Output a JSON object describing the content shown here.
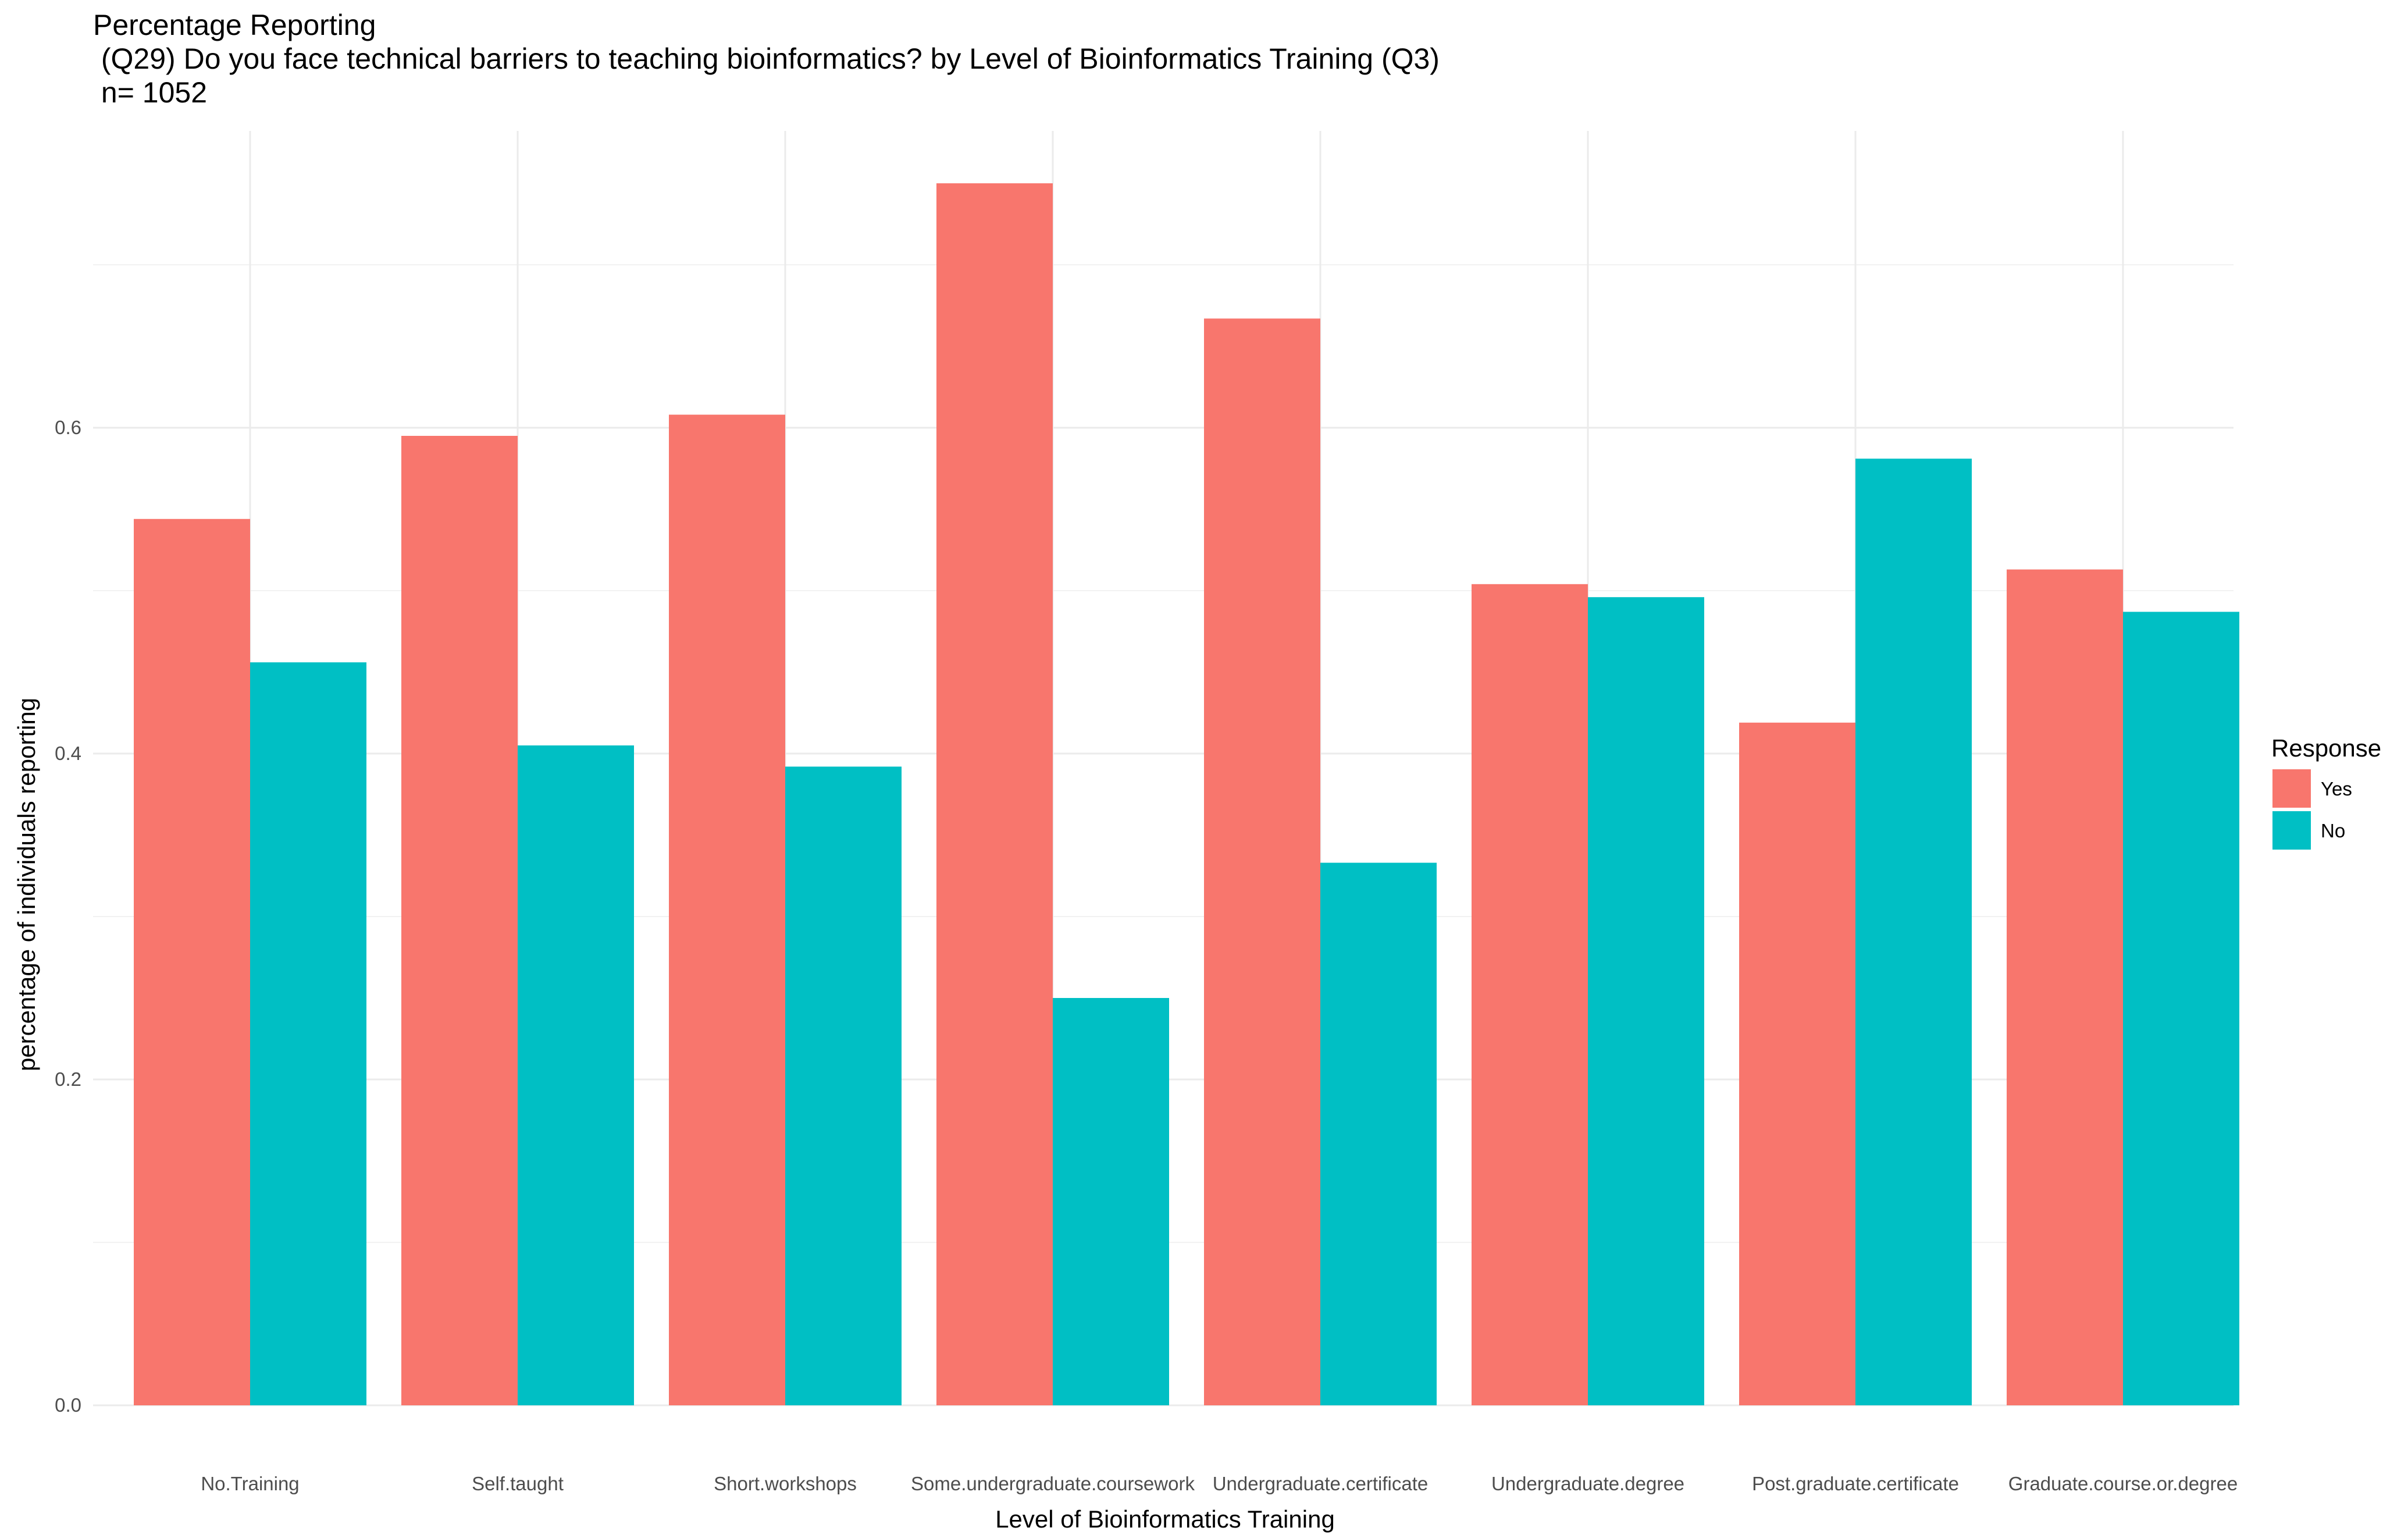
{
  "chart_data": {
    "type": "bar",
    "title": "Percentage Reporting",
    "subtitle_lines": [
      " (Q29) Do you face technical barriers to teaching bioinformatics? by Level of Bioinformatics Training (Q3)",
      " n= 1052"
    ],
    "xlabel": "Level of Bioinformatics Training",
    "ylabel": "percentage of individuals reporting",
    "ylim": [
      0,
      0.76
    ],
    "yticks": [
      "0.0",
      "0.2",
      "0.4",
      "0.6"
    ],
    "ytick_values": [
      0,
      0.2,
      0.4,
      0.6
    ],
    "grid": true,
    "legend": {
      "title": "Response",
      "position": "right"
    },
    "categories": [
      "No.Training",
      "Self.taught",
      "Short.workshops",
      "Some.undergraduate.coursework",
      "Undergraduate.certificate",
      "Undergraduate.degree",
      "Post.graduate.certificate",
      "Graduate.course.or.degree"
    ],
    "series": [
      {
        "name": "Yes",
        "color": "#F8766D",
        "values": [
          0.544,
          0.595,
          0.608,
          0.75,
          0.667,
          0.504,
          0.419,
          0.513
        ]
      },
      {
        "name": "No",
        "color": "#00BFC4",
        "values": [
          0.456,
          0.405,
          0.392,
          0.25,
          0.333,
          0.496,
          0.581,
          0.487
        ]
      }
    ]
  }
}
